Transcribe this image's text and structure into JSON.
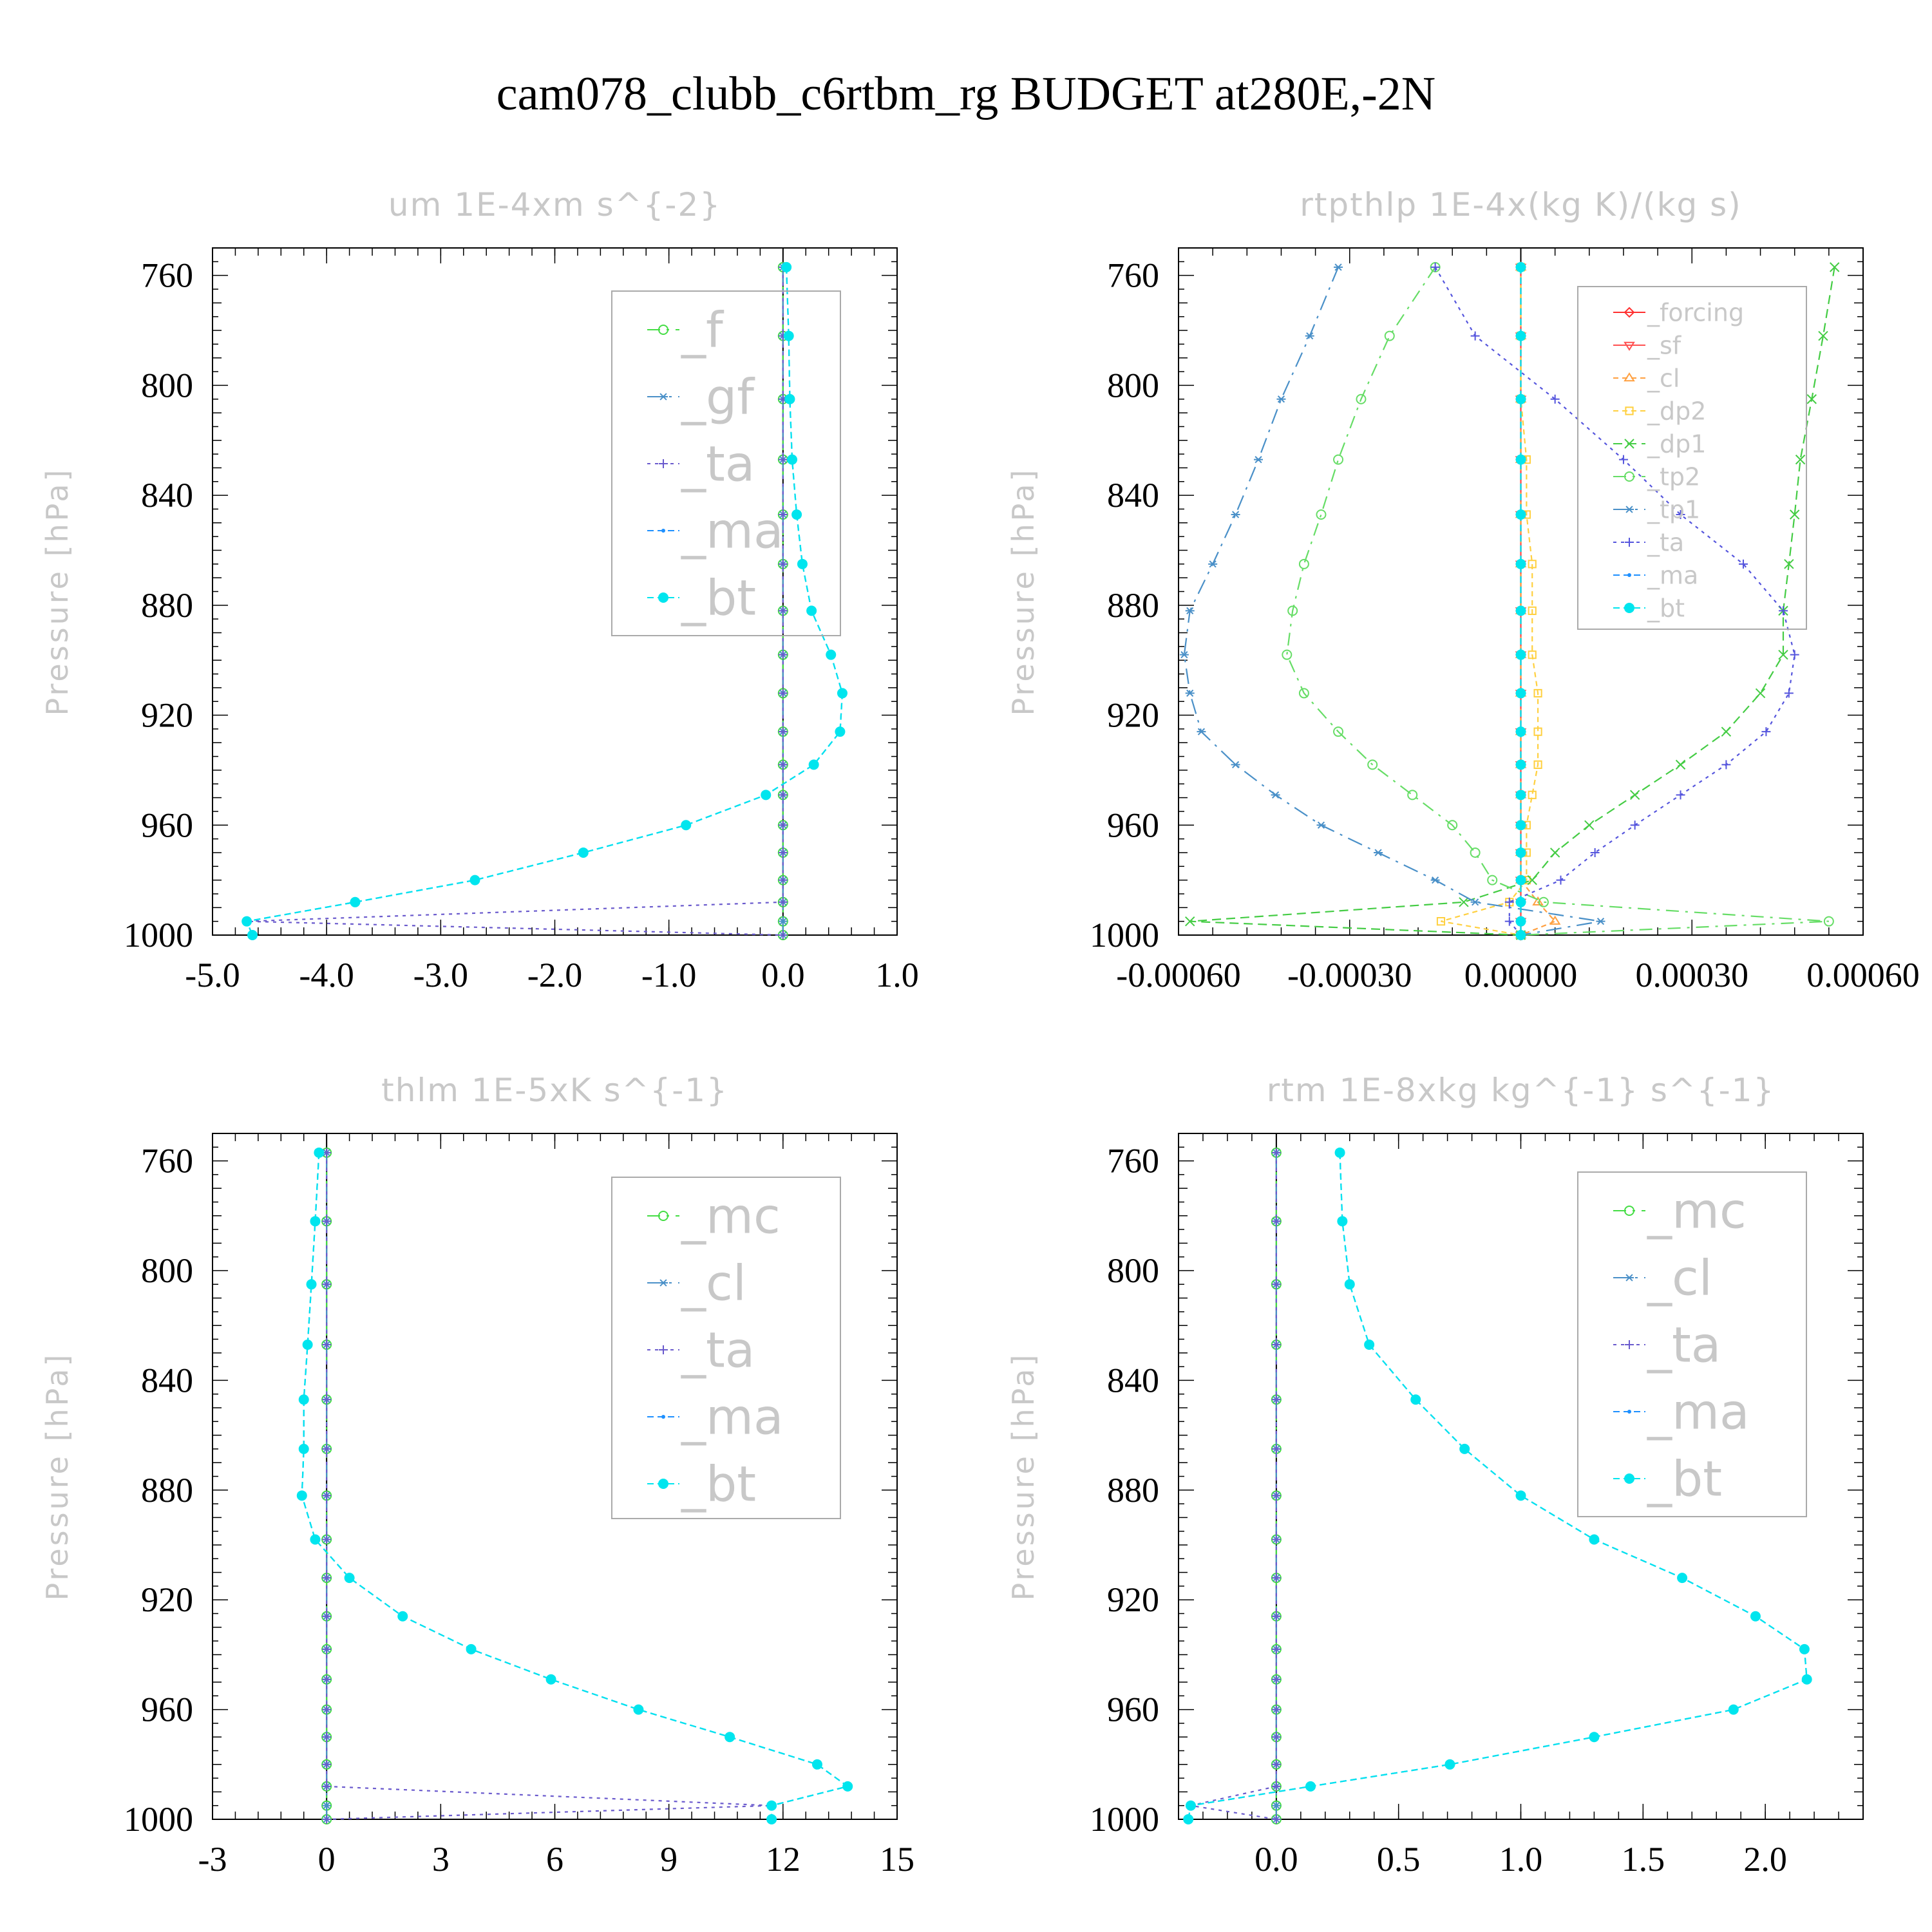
{
  "title": "cam078_clubb_c6rtbm_rg  BUDGET at280E,-2N",
  "chart_data": [
    {
      "type": "line",
      "title": "um   1E-4xm s^{-2}",
      "ylabel": "Pressure [hPa]",
      "xlabel": "",
      "xlim": [
        -5.0,
        1.0
      ],
      "ylim": [
        1000,
        750
      ],
      "xticks": [
        "-5.0",
        "-4.0",
        "-3.0",
        "-2.0",
        "-1.0",
        "0.0",
        "1.0"
      ],
      "yticks": [
        "760",
        "800",
        "840",
        "880",
        "920",
        "960",
        "1000"
      ],
      "grid": false,
      "legend_position": "top-right",
      "levels": [
        757,
        782,
        805,
        827,
        847,
        865,
        882,
        898,
        912,
        926,
        938,
        949,
        960,
        970,
        980,
        988,
        995,
        1000
      ],
      "series": [
        {
          "name": "_f",
          "color": "#44dd44",
          "marker": "circle",
          "values": [
            0,
            0,
            0,
            0,
            0,
            0,
            0,
            0,
            0,
            0,
            0,
            0,
            0,
            0,
            0,
            0,
            0,
            0
          ]
        },
        {
          "name": "_gf",
          "color": "#4a90c8",
          "marker": "asterisk",
          "values": [
            0,
            0,
            0,
            0,
            0,
            0,
            0,
            0,
            0,
            0,
            0,
            0,
            0,
            0,
            0,
            0,
            0,
            0
          ]
        },
        {
          "name": "_ta",
          "color": "#6a5acd",
          "marker": "plus",
          "values": [
            0,
            0,
            0,
            0,
            0,
            0,
            0,
            0,
            0,
            0,
            0,
            0,
            0,
            0,
            0,
            0,
            -4.7,
            0
          ]
        },
        {
          "name": "_ma",
          "color": "#1e90ff",
          "marker": "dot",
          "values": [
            0.03,
            0.05,
            0.06,
            0.08,
            0.12,
            0.17,
            0.25,
            0.42,
            0.52,
            0.5,
            0.27,
            -0.15,
            -0.85,
            -1.75,
            -2.7,
            -3.75,
            -4.7,
            -4.65
          ]
        },
        {
          "name": "_bt",
          "color": "#00e5ee",
          "marker": "filled-circle",
          "values": [
            0.03,
            0.05,
            0.06,
            0.08,
            0.12,
            0.17,
            0.25,
            0.42,
            0.52,
            0.5,
            0.27,
            -0.15,
            -0.85,
            -1.75,
            -2.7,
            -3.75,
            -4.7,
            -4.65
          ]
        }
      ]
    },
    {
      "type": "line",
      "title": "rtpthlp   1E-4x(kg K)/(kg s)",
      "ylabel": "Pressure [hPa]",
      "xlabel": "",
      "xlim": [
        -0.0006,
        0.0006
      ],
      "ylim": [
        1000,
        750
      ],
      "xticks": [
        "-0.00060",
        "-0.00030",
        "0.00000",
        "0.00030",
        "0.00060"
      ],
      "yticks": [
        "760",
        "800",
        "840",
        "880",
        "920",
        "960",
        "1000"
      ],
      "grid": false,
      "legend_position": "top-right",
      "levels": [
        757,
        782,
        805,
        827,
        847,
        865,
        882,
        898,
        912,
        926,
        938,
        949,
        960,
        970,
        980,
        988,
        995,
        1000
      ],
      "series": [
        {
          "name": "_forcing",
          "color": "#ff3030",
          "marker": "diamond",
          "values": [
            0,
            0,
            0,
            0,
            0,
            0,
            0,
            0,
            0,
            0,
            0,
            0,
            0,
            0,
            0,
            0,
            0,
            0
          ]
        },
        {
          "name": "_sf",
          "color": "#ff5050",
          "marker": "triangle-down",
          "values": [
            0,
            0,
            0,
            0,
            0,
            0,
            0,
            0,
            0,
            0,
            0,
            0,
            0,
            0,
            0,
            0,
            0,
            0
          ]
        },
        {
          "name": "_cl",
          "color": "#ffa040",
          "marker": "triangle-up",
          "values": [
            0,
            0,
            0,
            0,
            0,
            0,
            0,
            0,
            0,
            0,
            0,
            0,
            0,
            0,
            0,
            3e-05,
            6e-05,
            0
          ]
        },
        {
          "name": "_dp2",
          "color": "#ffd040",
          "marker": "square",
          "values": [
            0,
            0,
            0,
            1e-05,
            1e-05,
            2e-05,
            2e-05,
            2e-05,
            3e-05,
            3e-05,
            3e-05,
            2e-05,
            1e-05,
            1e-05,
            1e-05,
            -2e-05,
            -0.00014,
            0
          ]
        },
        {
          "name": "_dp1",
          "color": "#44cc44",
          "marker": "cross",
          "values": [
            0.00055,
            0.00053,
            0.00051,
            0.00049,
            0.00048,
            0.00047,
            0.00046,
            0.00046,
            0.00042,
            0.00036,
            0.00028,
            0.0002,
            0.00012,
            6e-05,
            2e-05,
            -0.0001,
            -0.00058,
            0
          ]
        },
        {
          "name": "_tp2",
          "color": "#66dd66",
          "marker": "circle",
          "values": [
            -0.00015,
            -0.00023,
            -0.00028,
            -0.00032,
            -0.00035,
            -0.00038,
            -0.0004,
            -0.00041,
            -0.00038,
            -0.00032,
            -0.00026,
            -0.00019,
            -0.00012,
            -8e-05,
            -5e-05,
            4e-05,
            0.00054,
            0
          ]
        },
        {
          "name": "_tp1",
          "color": "#4a90c8",
          "marker": "asterisk",
          "values": [
            -0.00032,
            -0.00037,
            -0.00042,
            -0.00046,
            -0.0005,
            -0.00054,
            -0.00058,
            -0.00059,
            -0.00058,
            -0.00056,
            -0.0005,
            -0.00043,
            -0.00035,
            -0.00025,
            -0.00015,
            -8e-05,
            0.00014,
            0
          ]
        },
        {
          "name": "_ta",
          "color": "#5555dd",
          "marker": "plus",
          "values": [
            -0.00015,
            -8e-05,
            6e-05,
            0.00018,
            0.00028,
            0.00039,
            0.00046,
            0.00048,
            0.00047,
            0.00043,
            0.00036,
            0.00028,
            0.0002,
            0.00013,
            7e-05,
            -2e-05,
            -2e-05,
            0
          ]
        },
        {
          "name": "_ma",
          "color": "#1e90ff",
          "marker": "dot",
          "values": [
            0,
            0,
            0,
            0,
            0,
            0,
            0,
            0,
            0,
            0,
            0,
            0,
            0,
            0,
            0,
            0,
            0,
            0
          ]
        },
        {
          "name": "_bt",
          "color": "#00e5ee",
          "marker": "filled-circle",
          "values": [
            0,
            0,
            0,
            0,
            0,
            0,
            0,
            0,
            0,
            0,
            0,
            0,
            0,
            0,
            0,
            0,
            0,
            0
          ]
        }
      ]
    },
    {
      "type": "line",
      "title": "thlm   1E-5xK s^{-1}",
      "ylabel": "Pressure [hPa]",
      "xlabel": "",
      "xlim": [
        -3,
        15
      ],
      "ylim": [
        1000,
        750
      ],
      "xticks": [
        "-3",
        "0",
        "3",
        "6",
        "9",
        "12",
        "15"
      ],
      "yticks": [
        "760",
        "800",
        "840",
        "880",
        "920",
        "960",
        "1000"
      ],
      "grid": false,
      "legend_position": "top-right",
      "levels": [
        757,
        782,
        805,
        827,
        847,
        865,
        882,
        898,
        912,
        926,
        938,
        949,
        960,
        970,
        980,
        988,
        995,
        1000
      ],
      "series": [
        {
          "name": "_mc",
          "color": "#44dd44",
          "marker": "circle",
          "values": [
            0,
            0,
            0,
            0,
            0,
            0,
            0,
            0,
            0,
            0,
            0,
            0,
            0,
            0,
            0,
            0,
            0,
            0
          ]
        },
        {
          "name": "_cl",
          "color": "#4a90c8",
          "marker": "asterisk",
          "values": [
            0,
            0,
            0,
            0,
            0,
            0,
            0,
            0,
            0,
            0,
            0,
            0,
            0,
            0,
            0,
            0,
            0,
            0
          ]
        },
        {
          "name": "_ta",
          "color": "#6a5acd",
          "marker": "plus",
          "values": [
            0,
            0,
            0,
            0,
            0,
            0,
            0,
            0,
            0,
            0,
            0,
            0,
            0,
            0,
            0,
            0,
            11.7,
            0
          ]
        },
        {
          "name": "_ma",
          "color": "#1e90ff",
          "marker": "dot",
          "values": [
            -0.2,
            -0.3,
            -0.4,
            -0.5,
            -0.6,
            -0.6,
            -0.65,
            -0.3,
            0.6,
            2.0,
            3.8,
            5.9,
            8.2,
            10.6,
            12.9,
            13.7,
            11.7,
            11.7
          ]
        },
        {
          "name": "_bt",
          "color": "#00e5ee",
          "marker": "filled-circle",
          "values": [
            -0.2,
            -0.3,
            -0.4,
            -0.5,
            -0.6,
            -0.6,
            -0.65,
            -0.3,
            0.6,
            2.0,
            3.8,
            5.9,
            8.2,
            10.6,
            12.9,
            13.7,
            11.7,
            11.7
          ]
        }
      ]
    },
    {
      "type": "line",
      "title": "rtm   1E-8xkg kg^{-1} s^{-1}",
      "ylabel": "Pressure [hPa]",
      "xlabel": "",
      "xlim": [
        -0.4,
        2.4
      ],
      "ylim": [
        1000,
        750
      ],
      "xticks": [
        "0.0",
        "0.5",
        "1.0",
        "1.5",
        "2.0"
      ],
      "yticks": [
        "760",
        "800",
        "840",
        "880",
        "920",
        "960",
        "1000"
      ],
      "grid": false,
      "legend_position": "top-right",
      "levels": [
        757,
        782,
        805,
        827,
        847,
        865,
        882,
        898,
        912,
        926,
        938,
        949,
        960,
        970,
        980,
        988,
        995,
        1000
      ],
      "series": [
        {
          "name": "_mc",
          "color": "#44dd44",
          "marker": "circle",
          "values": [
            0,
            0,
            0,
            0,
            0,
            0,
            0,
            0,
            0,
            0,
            0,
            0,
            0,
            0,
            0,
            0,
            0,
            0
          ]
        },
        {
          "name": "_cl",
          "color": "#4a90c8",
          "marker": "asterisk",
          "values": [
            0,
            0,
            0,
            0,
            0,
            0,
            0,
            0,
            0,
            0,
            0,
            0,
            0,
            0,
            0,
            0,
            0,
            0
          ]
        },
        {
          "name": "_ta",
          "color": "#6a5acd",
          "marker": "plus",
          "values": [
            0,
            0,
            0,
            0,
            0,
            0,
            0,
            0,
            0,
            0,
            0,
            0,
            0,
            0,
            0,
            0,
            -0.35,
            0
          ]
        },
        {
          "name": "_ma",
          "color": "#1e90ff",
          "marker": "dot",
          "values": [
            0.26,
            0.27,
            0.3,
            0.38,
            0.57,
            0.77,
            1.0,
            1.3,
            1.66,
            1.96,
            2.16,
            2.17,
            1.87,
            1.3,
            0.71,
            0.14,
            -0.35,
            -0.36
          ]
        },
        {
          "name": "_bt",
          "color": "#00e5ee",
          "marker": "filled-circle",
          "values": [
            0.26,
            0.27,
            0.3,
            0.38,
            0.57,
            0.77,
            1.0,
            1.3,
            1.66,
            1.96,
            2.16,
            2.17,
            1.87,
            1.3,
            0.71,
            0.14,
            -0.35,
            -0.36
          ]
        }
      ]
    }
  ]
}
